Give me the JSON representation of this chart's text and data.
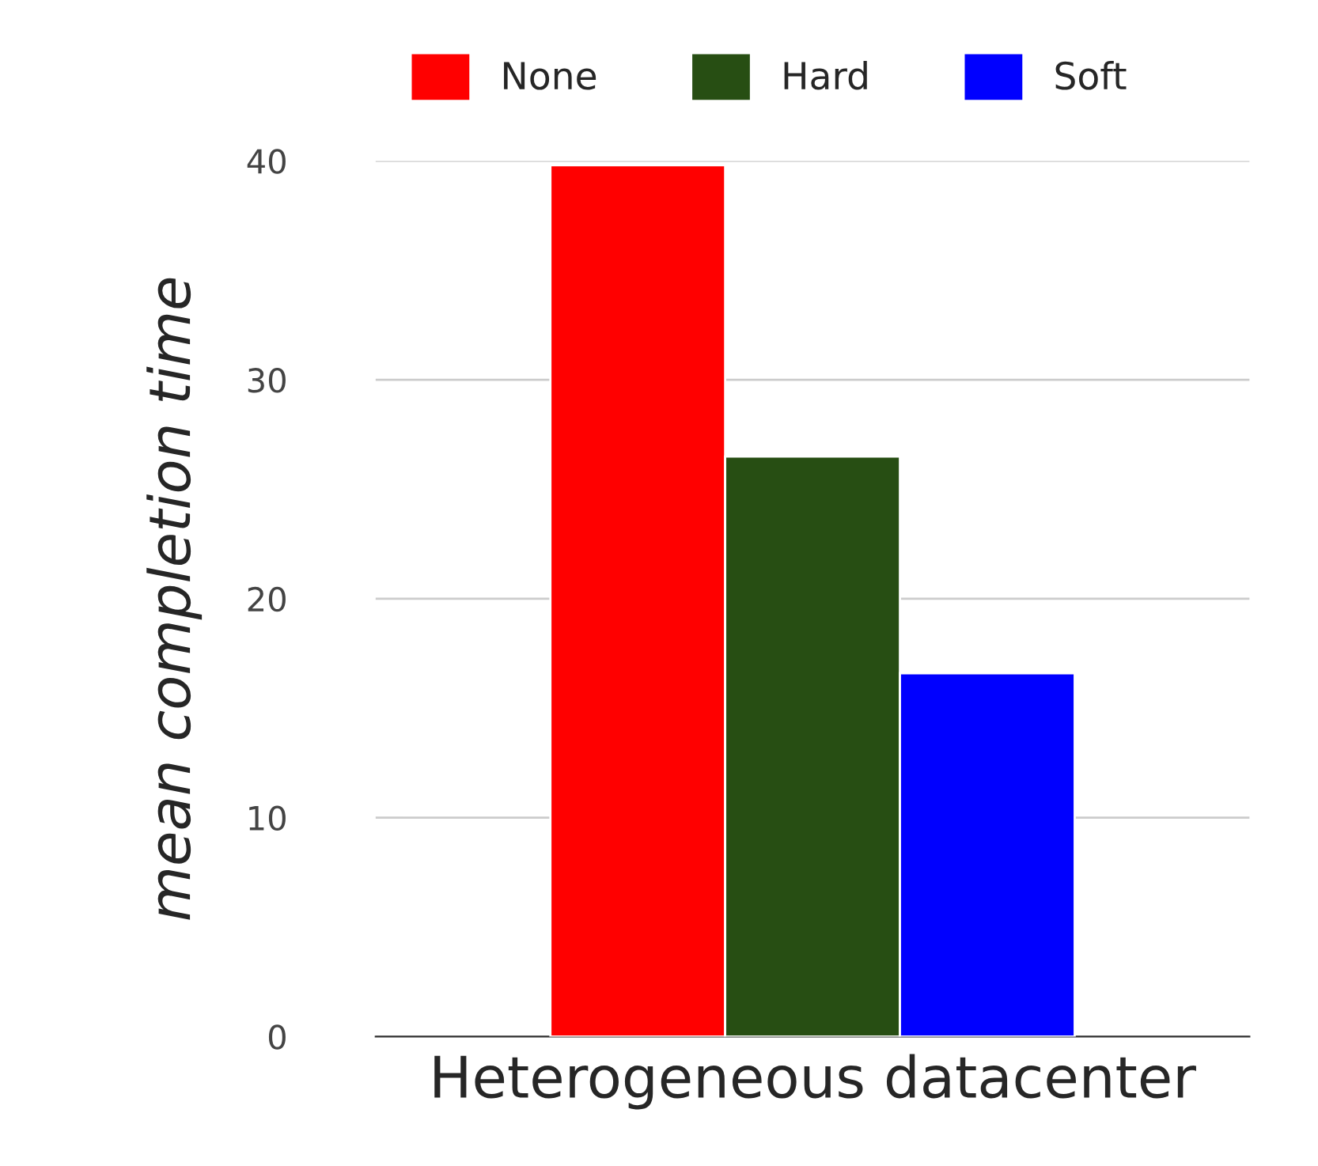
{
  "chart_data": {
    "type": "bar",
    "categories": [
      "Heterogeneous datacenter"
    ],
    "ylabel": "mean completion time",
    "series": [
      {
        "name": "None",
        "color": "#ff0000",
        "values": [
          39.8
        ]
      },
      {
        "name": "Hard",
        "color": "#274e13",
        "values": [
          26.5
        ]
      },
      {
        "name": "Soft",
        "color": "#0000ff",
        "values": [
          16.6
        ]
      }
    ],
    "ylim": [
      0,
      40
    ],
    "yticks": [
      0,
      10,
      20,
      30,
      40
    ],
    "grid": "y",
    "legend": "top"
  }
}
